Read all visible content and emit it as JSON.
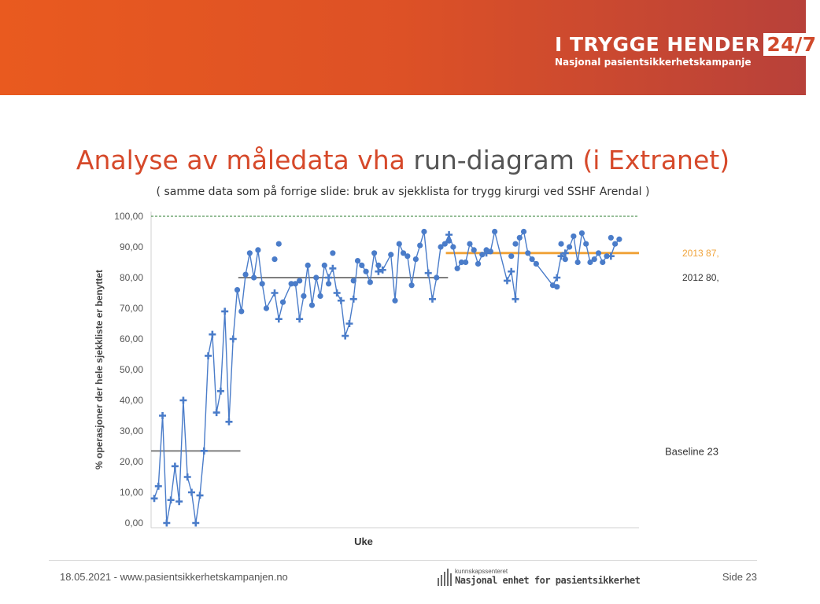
{
  "header": {
    "brand_title": "I TRYGGE HENDER",
    "brand_number": "24/7",
    "brand_subtitle": "Nasjonal pasientsikkerhetskampanje"
  },
  "slide": {
    "title_part1": "Analyse av måledata vha ",
    "title_part2": "run-diagram",
    "title_part3": " (i Extranet)",
    "subtitle": "( samme data som på forrige slide: bruk av sjekklista for trygg kirurgi ved SSHF Arendal )"
  },
  "footer": {
    "date_url": "18.05.2021 - www.pasientsikkerhetskampanjen.no",
    "logo_small": "kunnskapssenteret",
    "logo_main": "Nasjonal enhet for pasientsikkerhet",
    "page": "Side 23"
  },
  "colors": {
    "banner_start": "#e95a1f",
    "banner_end": "#b8413a",
    "title_orange": "#d6492a",
    "series_blue": "#4a7cc9",
    "median_gray": "#7f7f7f",
    "median_orange": "#f0a33a",
    "goal_green": "#2e7d32"
  },
  "chart_data": {
    "type": "line",
    "ylabel": "% operasjoner der hele sjekkliste er benyttet",
    "xlabel": "Uke",
    "ylim": [
      0,
      100
    ],
    "yticks": [
      "0,00",
      "10,00",
      "20,00",
      "30,00",
      "40,00",
      "50,00",
      "60,00",
      "70,00",
      "80,00",
      "90,00",
      "100,00"
    ],
    "grid": false,
    "goal_line": 100,
    "series": [
      {
        "marker": "plus",
        "values": [
          8,
          12,
          35,
          0,
          7.5,
          18.5,
          7,
          40,
          15,
          10,
          0,
          9,
          23.5,
          54.5,
          61.5,
          36,
          43,
          69,
          33,
          60,
          null,
          null,
          null,
          null,
          null,
          null,
          null,
          null,
          null,
          75,
          66.5,
          null,
          null,
          null,
          null,
          66.5,
          null,
          null,
          null,
          null,
          null,
          null,
          80,
          83,
          75,
          72.5,
          61,
          65,
          73,
          null,
          null,
          null,
          null,
          null,
          82,
          82.5,
          null,
          null,
          null,
          null,
          null,
          null,
          null,
          null,
          null,
          null,
          81.5,
          73,
          null,
          null,
          null,
          94,
          null,
          null,
          null,
          null,
          null,
          null,
          null,
          null,
          88,
          null,
          null,
          null,
          null,
          79,
          82,
          73,
          null,
          null,
          null,
          null,
          null,
          null,
          null,
          null,
          null,
          80,
          87,
          88,
          null,
          null,
          null,
          null,
          null,
          null,
          null,
          null,
          null,
          null,
          87,
          null,
          null,
          null,
          null,
          null,
          null
        ]
      },
      {
        "marker": "dot",
        "values": [
          null,
          null,
          null,
          null,
          null,
          null,
          null,
          null,
          null,
          null,
          null,
          null,
          null,
          null,
          null,
          null,
          null,
          null,
          null,
          null,
          76,
          69,
          81,
          88,
          80,
          89,
          78,
          70,
          null,
          86,
          91,
          72,
          null,
          78,
          78,
          79,
          74,
          84,
          71,
          80,
          74,
          84,
          78,
          88,
          null,
          null,
          null,
          null,
          79,
          85.5,
          84,
          82,
          78.5,
          88,
          84,
          null,
          null,
          87.5,
          72.5,
          91,
          88,
          87,
          77.5,
          86,
          90.5,
          95,
          null,
          null,
          80,
          90,
          91,
          92,
          90,
          83,
          85,
          85,
          91,
          89,
          84.5,
          87.5,
          89,
          88.5,
          95,
          null,
          null,
          null,
          87,
          91,
          93,
          95,
          88,
          86,
          84.5,
          null,
          null,
          null,
          77.5,
          77,
          91,
          86,
          90,
          93.5,
          85,
          94.5,
          91,
          85,
          86,
          88,
          85,
          87,
          93,
          91,
          92.5
        ]
      }
    ],
    "median_segments": [
      {
        "value": 23.5,
        "label": "Baseline 23",
        "color": "#7f7f7f"
      },
      {
        "value": 80,
        "label": "2012 80,",
        "color": "#7f7f7f"
      },
      {
        "value": 88,
        "label": "2013 87,",
        "color": "#f0a33a"
      }
    ]
  }
}
